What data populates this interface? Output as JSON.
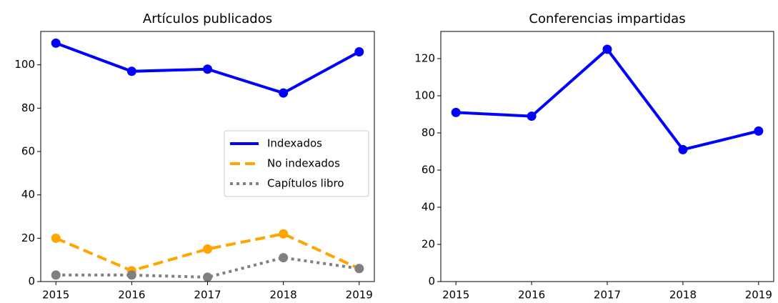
{
  "chart_data": [
    {
      "type": "line",
      "title": "Artículos publicados",
      "x": [
        2015,
        2016,
        2017,
        2018,
        2019
      ],
      "series": [
        {
          "name": "Indexados",
          "color": "#0000ff",
          "dash": "solid",
          "values": [
            110,
            97,
            98,
            87,
            106
          ]
        },
        {
          "name": "No indexados",
          "color": "#ffa500",
          "dash": "dashed",
          "values": [
            20,
            5,
            15,
            22,
            6
          ]
        },
        {
          "name": "Capítulos libro",
          "color": "#808080",
          "dash": "dotted",
          "values": [
            3,
            3,
            2,
            11,
            6
          ]
        }
      ],
      "xlim": [
        2014.8,
        2019.2
      ],
      "xticks": [
        2015,
        2016,
        2017,
        2018,
        2019
      ],
      "ylim": [
        0,
        115.4
      ],
      "yticks": [
        0,
        20,
        40,
        60,
        80,
        100
      ],
      "legend": "center right"
    },
    {
      "type": "line",
      "title": "Conferencias impartidas",
      "x": [
        2015,
        2016,
        2017,
        2018,
        2019
      ],
      "series": [
        {
          "color": "#0000ff",
          "dash": "solid",
          "values": [
            91,
            89,
            125,
            71,
            81
          ]
        }
      ],
      "xlim": [
        2014.8,
        2019.2
      ],
      "xticks": [
        2015,
        2016,
        2017,
        2018,
        2019
      ],
      "ylim": [
        0,
        134.6
      ],
      "yticks": [
        0,
        20,
        40,
        60,
        80,
        100,
        120
      ]
    }
  ]
}
